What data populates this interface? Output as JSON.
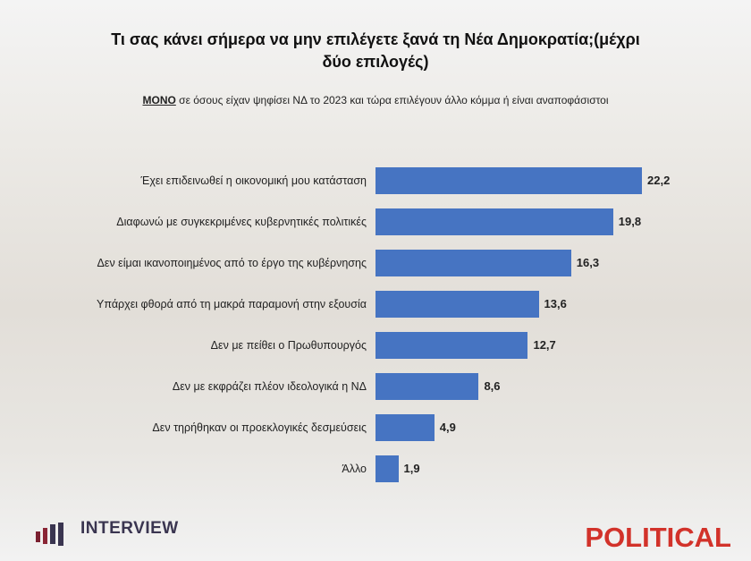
{
  "chart_data": {
    "type": "bar",
    "orientation": "horizontal",
    "title": "Τι σας κάνει σήμερα να μην επιλέγετε ξανά τη Νέα Δημοκρατία;(μέχρι δύο επιλογές)",
    "subtitle_lead": "ΜΟΝΟ",
    "subtitle": "σε όσους είχαν ψηφίσει ΝΔ το 2023 και τώρα επιλέγουν άλλο κόμμα ή είναι αναποφάσιστοι",
    "categories": [
      "Έχει επιδεινωθεί η οικονομική μου κατάσταση",
      "Διαφωνώ με συγκεκριμένες κυβερνητικές πολιτικές",
      "Δεν είμαι ικανοποιημένος από το έργο της κυβέρνησης",
      "Υπάρχει φθορά από τη μακρά παραμονή στην εξουσία",
      "Δεν με πείθει ο Πρωθυπουργός",
      "Δεν με εκφράζει πλέον ιδεολογικά η ΝΔ",
      "Δεν τηρήθηκαν οι προεκλογικές δεσμεύσεις",
      "Άλλο"
    ],
    "values": [
      22.2,
      19.8,
      16.3,
      13.6,
      12.7,
      8.6,
      4.9,
      1.9
    ],
    "value_labels": [
      "22,2",
      "19,8",
      "16,3",
      "13,6",
      "12,7",
      "8,6",
      "4,9",
      "1,9"
    ],
    "color": "#4674c2"
  },
  "logos": {
    "left": "INTERVIEW",
    "right": "POLITICAL"
  }
}
